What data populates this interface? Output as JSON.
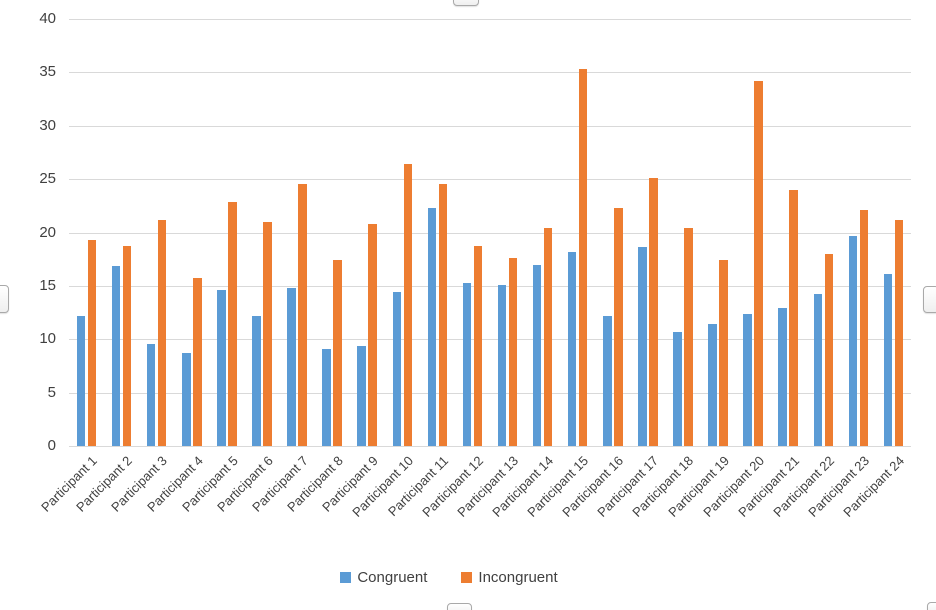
{
  "chart_data": {
    "type": "bar",
    "title": "",
    "xlabel": "",
    "ylabel": "",
    "categories": [
      "Participant 1",
      "Participant 2",
      "Participant 3",
      "Participant 4",
      "Participant 5",
      "Participant 6",
      "Participant 7",
      "Participant 8",
      "Participant 9",
      "Participant 10",
      "Participant 11",
      "Participant 12",
      "Participant 13",
      "Participant 14",
      "Participant 15",
      "Participant 16",
      "Participant 17",
      "Participant 18",
      "Participant 19",
      "Participant 20",
      "Participant 21",
      "Participant 22",
      "Participant 23",
      "Participant 24"
    ],
    "series": [
      {
        "name": "Congruent",
        "color": "#5B9BD5",
        "values": [
          12.2,
          16.9,
          9.6,
          8.7,
          14.6,
          12.2,
          14.8,
          9.1,
          9.4,
          14.4,
          22.3,
          15.3,
          15.1,
          17.0,
          18.2,
          12.2,
          18.6,
          10.7,
          11.4,
          12.4,
          12.9,
          14.2,
          19.7,
          16.1
        ]
      },
      {
        "name": "Incongruent",
        "color": "#ED7D31",
        "values": [
          19.3,
          18.7,
          21.2,
          15.7,
          22.9,
          21.0,
          24.5,
          17.4,
          20.8,
          26.4,
          24.5,
          18.7,
          17.6,
          20.4,
          35.3,
          22.3,
          25.1,
          20.4,
          17.4,
          34.2,
          24.0,
          18.0,
          22.1,
          21.2
        ]
      }
    ],
    "ylim": [
      0,
      40
    ],
    "yticks": [
      0,
      5,
      10,
      15,
      20,
      25,
      30,
      35,
      40
    ],
    "grid": true,
    "legend_position": "bottom"
  },
  "styles": {
    "gridline_color": "#D9D9D9",
    "axis_text_color": "#404040",
    "background": "#FFFFFF",
    "congruent_color": "#5B9BD5",
    "incongruent_color": "#ED7D31"
  }
}
